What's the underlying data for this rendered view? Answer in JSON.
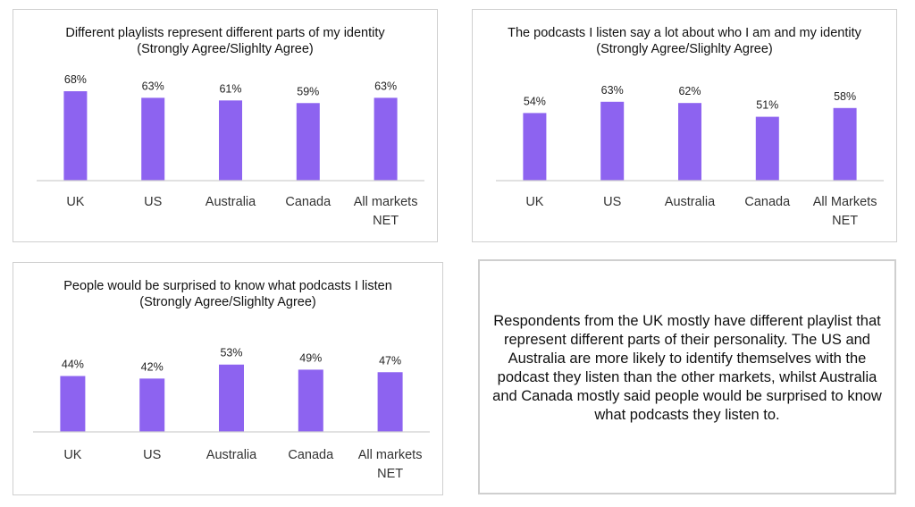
{
  "chart_data": [
    {
      "type": "bar",
      "title": "Different playlists represent different parts of my identity (Strongly Agree/Slighlty Agree)",
      "categories": [
        "UK",
        "US",
        "Australia",
        "Canada",
        "All markets NET"
      ],
      "values": [
        68,
        63,
        61,
        59,
        63
      ],
      "data_labels": [
        "68%",
        "63%",
        "61%",
        "59%",
        "63%"
      ],
      "unit": "%",
      "ylim": [
        0,
        100
      ],
      "bar_color": "#8d63f0",
      "grid": false,
      "legend": "none"
    },
    {
      "type": "bar",
      "title": "The podcasts I listen say a lot about who I am and my identity (Strongly Agree/Slighlty Agree)",
      "categories": [
        "UK",
        "US",
        "Australia",
        "Canada",
        "All Markets NET"
      ],
      "values": [
        54,
        63,
        62,
        51,
        58
      ],
      "data_labels": [
        "54%",
        "63%",
        "62%",
        "51%",
        "58%"
      ],
      "unit": "%",
      "ylim": [
        0,
        100
      ],
      "bar_color": "#8d63f0",
      "grid": false,
      "legend": "none"
    },
    {
      "type": "bar",
      "title": "People would be surprised to know what podcasts I listen (Strongly Agree/Slighlty Agree)",
      "categories": [
        "UK",
        "US",
        "Australia",
        "Canada",
        "All markets NET"
      ],
      "values": [
        44,
        42,
        53,
        49,
        47
      ],
      "data_labels": [
        "44%",
        "42%",
        "53%",
        "49%",
        "47%"
      ],
      "unit": "%",
      "ylim": [
        0,
        100
      ],
      "bar_color": "#8d63f0",
      "grid": false,
      "legend": "none"
    }
  ],
  "summary": {
    "text": "Respondents from the UK mostly have different playlist that represent different parts of their personality. The US and Australia are more likely to identify themselves with the podcast they listen than the other markets, whilst Australia and Canada mostly said people would be surprised to know what podcasts they listen to."
  }
}
